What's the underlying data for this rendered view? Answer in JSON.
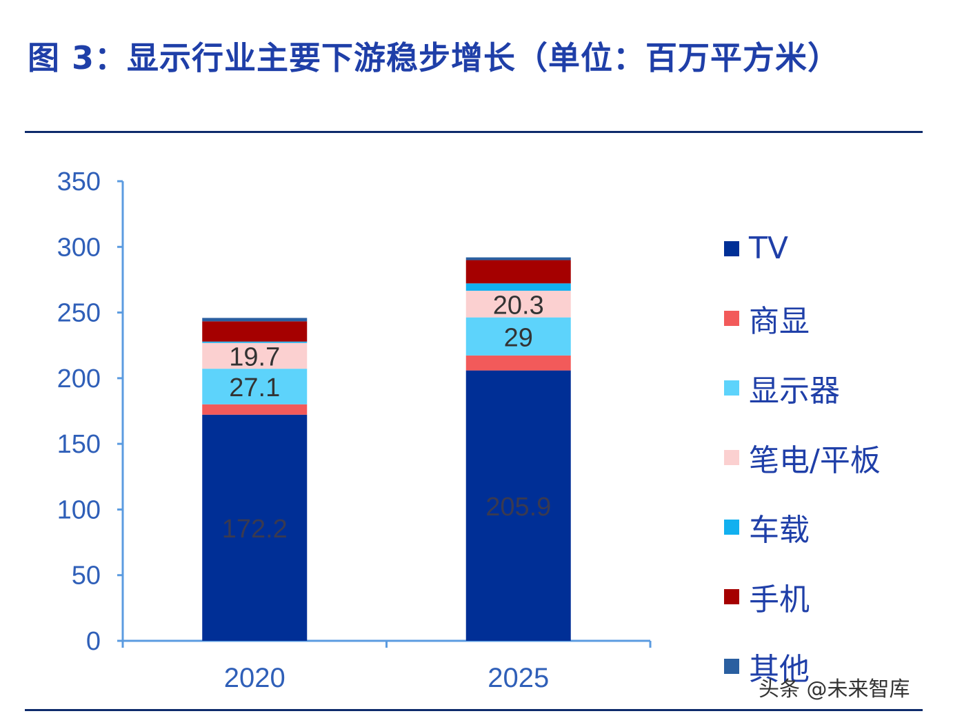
{
  "title": "图 3：显示行业主要下游稳步增长（单位：百万平方米）",
  "watermark": "头条 @未来智库",
  "chart_data": {
    "type": "bar",
    "stacked": true,
    "title": "图 3：显示行业主要下游稳步增长（单位：百万平方米）",
    "categories": [
      "2020",
      "2025"
    ],
    "ylim": [
      0,
      350
    ],
    "yticks": [
      "0",
      "50",
      "100",
      "150",
      "200",
      "250",
      "300",
      "350"
    ],
    "grid": false,
    "legend_position": "right",
    "series": [
      {
        "name": "TV",
        "color": "#002f96",
        "values": [
          172.2,
          205.9
        ],
        "labels": [
          "172.2",
          "205.9"
        ]
      },
      {
        "name": "商显",
        "color": "#f25a5a",
        "values": [
          7.9,
          11.4
        ],
        "labels": [
          "",
          ""
        ]
      },
      {
        "name": "显示器",
        "color": "#5dd3fb",
        "values": [
          27.1,
          29
        ],
        "labels": [
          "27.1",
          "29"
        ]
      },
      {
        "name": "笔电/平板",
        "color": "#fbd0d0",
        "values": [
          19.7,
          20.3
        ],
        "labels": [
          "19.7",
          "20.3"
        ]
      },
      {
        "name": "车载",
        "color": "#12b0ef",
        "values": [
          1,
          5.6
        ],
        "labels": [
          "",
          ""
        ]
      },
      {
        "name": "手机",
        "color": "#a50000",
        "values": [
          15.4,
          17.7
        ],
        "labels": [
          "",
          ""
        ]
      },
      {
        "name": "其他",
        "color": "#2a5fa0",
        "values": [
          2.6,
          2.1
        ],
        "labels": [
          "",
          ""
        ]
      }
    ]
  }
}
